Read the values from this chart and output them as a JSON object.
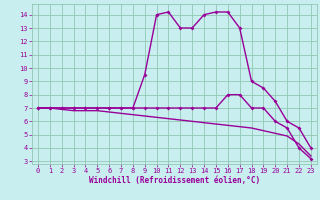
{
  "xlabel": "Windchill (Refroidissement éolien,°C)",
  "xlim": [
    -0.5,
    23.5
  ],
  "ylim": [
    2.8,
    14.8
  ],
  "yticks": [
    3,
    4,
    5,
    6,
    7,
    8,
    9,
    10,
    11,
    12,
    13,
    14
  ],
  "xticks": [
    0,
    1,
    2,
    3,
    4,
    5,
    6,
    7,
    8,
    9,
    10,
    11,
    12,
    13,
    14,
    15,
    16,
    17,
    18,
    19,
    20,
    21,
    22,
    23
  ],
  "bg_color": "#c8eef0",
  "grid_color": "#90c8b4",
  "line_color": "#990099",
  "line_width": 1.0,
  "marker_size": 2.0,
  "series1_x": [
    0,
    1,
    2,
    3,
    4,
    5,
    6,
    7,
    8,
    9,
    10,
    11,
    12,
    13,
    14,
    15,
    16,
    17,
    18,
    19,
    20,
    21,
    22,
    23
  ],
  "series1_y": [
    7.0,
    7.0,
    7.0,
    7.0,
    7.0,
    7.0,
    7.0,
    7.0,
    7.0,
    9.5,
    14.0,
    14.2,
    13.0,
    13.0,
    14.0,
    14.2,
    14.2,
    13.0,
    9.0,
    8.5,
    7.5,
    6.0,
    5.5,
    4.0
  ],
  "series2_x": [
    0,
    1,
    2,
    3,
    4,
    5,
    6,
    7,
    8,
    9,
    10,
    11,
    12,
    13,
    14,
    15,
    16,
    17,
    18,
    19,
    20,
    21,
    22,
    23
  ],
  "series2_y": [
    7.0,
    7.0,
    7.0,
    7.0,
    7.0,
    7.0,
    7.0,
    7.0,
    7.0,
    7.0,
    7.0,
    7.0,
    7.0,
    7.0,
    7.0,
    7.0,
    8.0,
    8.0,
    7.0,
    7.0,
    6.0,
    5.5,
    4.0,
    3.2
  ],
  "series3_x": [
    0,
    1,
    2,
    3,
    4,
    5,
    6,
    7,
    8,
    9,
    10,
    11,
    12,
    13,
    14,
    15,
    16,
    17,
    18,
    19,
    20,
    21,
    22,
    23
  ],
  "series3_y": [
    7.0,
    7.0,
    6.9,
    6.8,
    6.8,
    6.8,
    6.7,
    6.6,
    6.5,
    6.4,
    6.3,
    6.2,
    6.1,
    6.0,
    5.9,
    5.8,
    5.7,
    5.6,
    5.5,
    5.3,
    5.1,
    4.9,
    4.3,
    3.4
  ]
}
